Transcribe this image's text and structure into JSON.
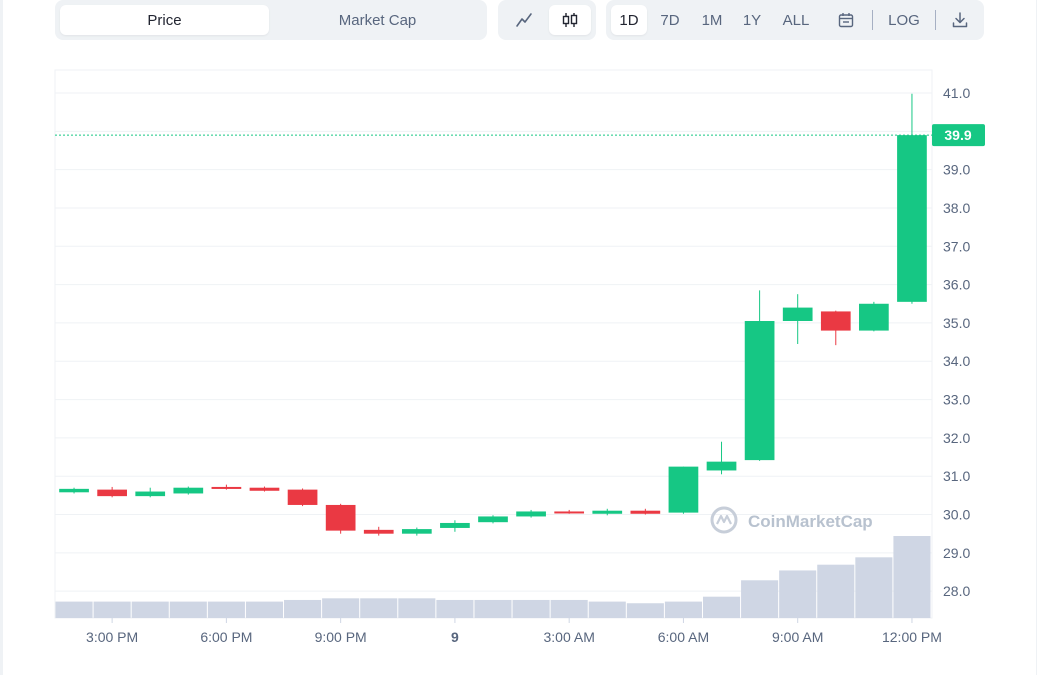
{
  "toolbar": {
    "metric_tabs": [
      {
        "label": "Price",
        "active": true
      },
      {
        "label": "Market Cap",
        "active": false
      }
    ],
    "chart_types": [
      {
        "icon": "line-chart-icon",
        "active": false
      },
      {
        "icon": "candlestick-icon",
        "active": true
      }
    ],
    "ranges": [
      {
        "label": "1D",
        "active": true
      },
      {
        "label": "7D",
        "active": false
      },
      {
        "label": "1M",
        "active": false
      },
      {
        "label": "1Y",
        "active": false
      },
      {
        "label": "ALL",
        "active": false
      }
    ],
    "calendar_icon": "calendar-icon",
    "log_label": "LOG",
    "download_icon": "download-icon"
  },
  "watermark": "CoinMarketCap",
  "colors": {
    "up": "#16c784",
    "down": "#ea3943",
    "volume": "#cfd6e4",
    "grid": "#eff2f5"
  },
  "chart_data": {
    "type": "candlestick",
    "y_ticks": [
      "28.0",
      "29.0",
      "30.0",
      "31.0",
      "32.0",
      "33.0",
      "34.0",
      "35.0",
      "36.0",
      "37.0",
      "38.0",
      "39.0",
      "40.0",
      "41.0"
    ],
    "ylim": [
      27.3,
      41.6
    ],
    "x_ticks": [
      {
        "label": "3:00 PM",
        "slot": 1.5
      },
      {
        "label": "6:00 PM",
        "slot": 4.5
      },
      {
        "label": "9:00 PM",
        "slot": 7.5
      },
      {
        "label": "9",
        "slot": 10.5,
        "bold": true
      },
      {
        "label": "3:00 AM",
        "slot": 13.5
      },
      {
        "label": "6:00 AM",
        "slot": 16.5
      },
      {
        "label": "9:00 AM",
        "slot": 19.5
      },
      {
        "label": "12:00 PM",
        "slot": 22.5
      }
    ],
    "current_price": "39.9",
    "current_value": 39.9,
    "candles": [
      {
        "o": 30.58,
        "c": 30.67,
        "h": 30.7,
        "l": 30.55
      },
      {
        "o": 30.65,
        "c": 30.48,
        "h": 30.72,
        "l": 30.45
      },
      {
        "o": 30.48,
        "c": 30.6,
        "h": 30.7,
        "l": 30.45
      },
      {
        "o": 30.55,
        "c": 30.7,
        "h": 30.73,
        "l": 30.52
      },
      {
        "o": 30.72,
        "c": 30.68,
        "h": 30.78,
        "l": 30.65
      },
      {
        "o": 30.7,
        "c": 30.62,
        "h": 30.73,
        "l": 30.6
      },
      {
        "o": 30.65,
        "c": 30.25,
        "h": 30.68,
        "l": 30.22
      },
      {
        "o": 30.25,
        "c": 29.58,
        "h": 30.28,
        "l": 29.5
      },
      {
        "o": 29.6,
        "c": 29.5,
        "h": 29.68,
        "l": 29.45
      },
      {
        "o": 29.5,
        "c": 29.62,
        "h": 29.66,
        "l": 29.45
      },
      {
        "o": 29.65,
        "c": 29.78,
        "h": 29.85,
        "l": 29.55
      },
      {
        "o": 29.8,
        "c": 29.95,
        "h": 29.98,
        "l": 29.77
      },
      {
        "o": 29.95,
        "c": 30.08,
        "h": 30.12,
        "l": 29.92
      },
      {
        "o": 30.08,
        "c": 30.05,
        "h": 30.12,
        "l": 30.02
      },
      {
        "o": 30.02,
        "c": 30.1,
        "h": 30.15,
        "l": 29.98
      },
      {
        "o": 30.1,
        "c": 30.02,
        "h": 30.15,
        "l": 30.0
      },
      {
        "o": 30.05,
        "c": 31.25,
        "h": 31.25,
        "l": 30.02
      },
      {
        "o": 31.15,
        "c": 31.38,
        "h": 31.9,
        "l": 31.05
      },
      {
        "o": 31.42,
        "c": 35.05,
        "h": 35.85,
        "l": 31.4
      },
      {
        "o": 35.05,
        "c": 35.4,
        "h": 35.75,
        "l": 34.45
      },
      {
        "o": 35.3,
        "c": 34.8,
        "h": 35.32,
        "l": 34.42
      },
      {
        "o": 34.8,
        "c": 35.5,
        "h": 35.55,
        "l": 34.78
      },
      {
        "o": 35.55,
        "c": 39.9,
        "h": 40.98,
        "l": 35.5
      }
    ],
    "volume": [
      0.2,
      0.2,
      0.2,
      0.2,
      0.2,
      0.2,
      0.22,
      0.24,
      0.24,
      0.24,
      0.22,
      0.22,
      0.22,
      0.22,
      0.2,
      0.18,
      0.2,
      0.26,
      0.46,
      0.58,
      0.65,
      0.74,
      1.0
    ]
  }
}
